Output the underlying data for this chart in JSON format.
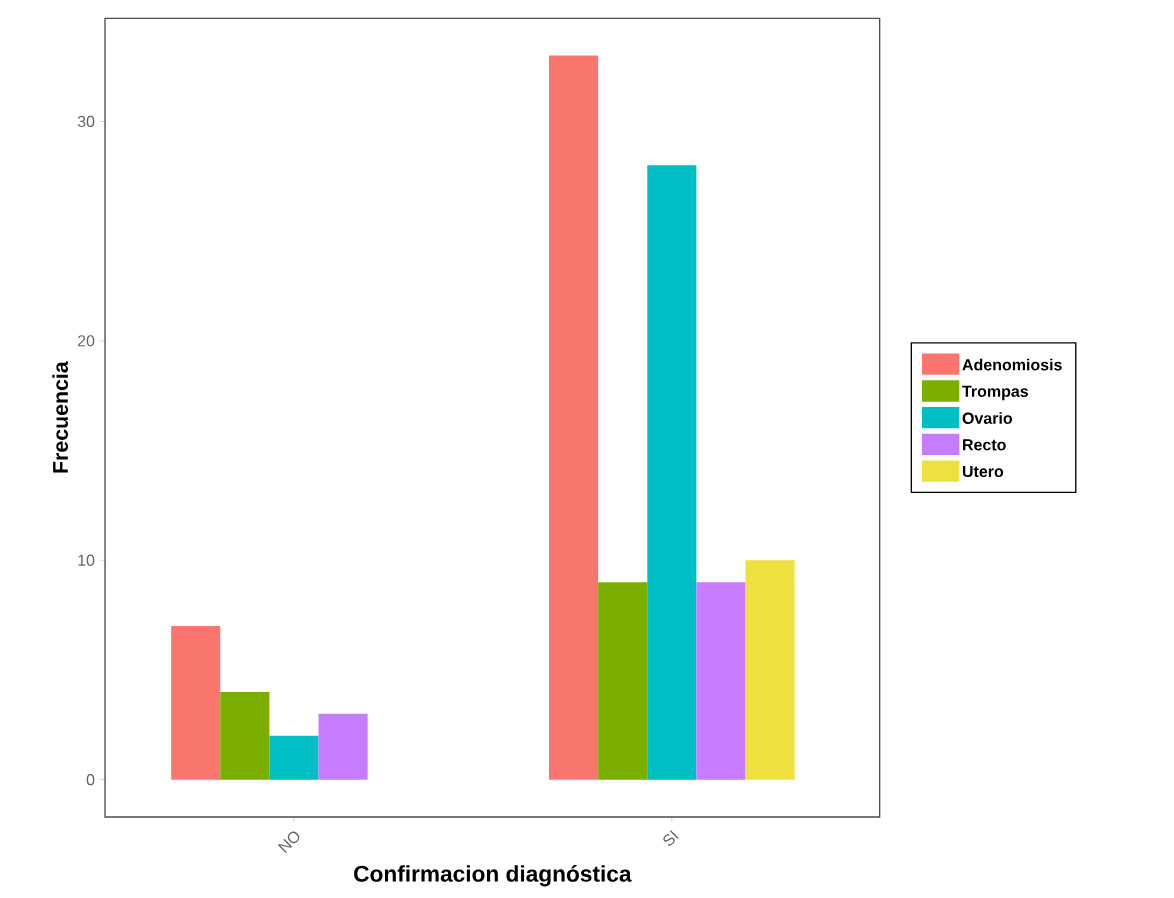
{
  "chart_data": {
    "type": "bar",
    "xlabel": "Confirmacion diagnóstica",
    "ylabel": "Frecuencia",
    "categories": [
      "NO",
      "SI"
    ],
    "series": [
      {
        "name": "Adenomiosis",
        "color": "#f8766d",
        "values": [
          7,
          33
        ]
      },
      {
        "name": "Trompas",
        "color": "#7cae00",
        "values": [
          4,
          9
        ]
      },
      {
        "name": "Ovario",
        "color": "#00bfc4",
        "values": [
          2,
          28
        ]
      },
      {
        "name": "Recto",
        "color": "#c77cff",
        "values": [
          3,
          9
        ]
      },
      {
        "name": "Utero",
        "color": "#ede03f",
        "values": [
          null,
          10
        ]
      }
    ],
    "ylim": [
      -1.7,
      34.7
    ],
    "yticks": [
      0,
      10,
      20,
      30
    ],
    "legend": "right"
  }
}
